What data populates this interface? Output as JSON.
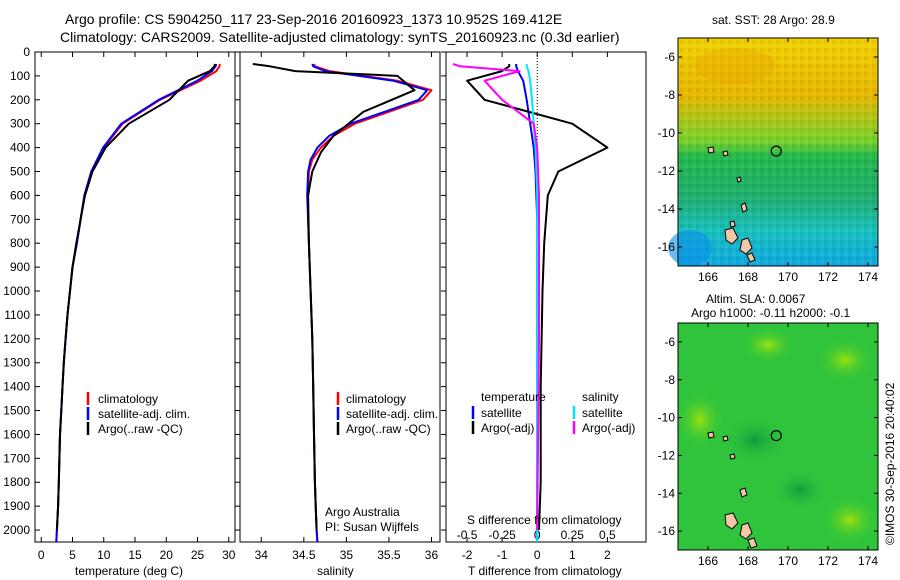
{
  "header": {
    "line1": "Argo profile: CS 5904250_117 23-Sep-2016 20160923_1373 10.952S 169.412E",
    "line2": "Climatology: CARS2009. Satellite-adjusted climatology: synTS_20160923.nc (0.3d earlier)"
  },
  "colors": {
    "climatology": "#ff0000",
    "satellite": "#0000ff",
    "argo": "#000000",
    "argo_salinity_adj": "#ff00ff",
    "satellite_salinity": "#00e5ff"
  },
  "chart_data": [
    {
      "type": "line",
      "name": "temperature-profile",
      "xlabel": "temperature (deg C)",
      "ylabel": "",
      "xlim": [
        -1,
        31
      ],
      "ylim": [
        2050,
        0
      ],
      "xticks": [
        "0",
        "5",
        "10",
        "15",
        "20",
        "25",
        "30"
      ],
      "yticks": [
        "0",
        "100",
        "200",
        "300",
        "400",
        "500",
        "600",
        "700",
        "800",
        "900",
        "1000",
        "1100",
        "1200",
        "1300",
        "1400",
        "1500",
        "1600",
        "1700",
        "1800",
        "1900",
        "2000"
      ],
      "legend": [
        "climatology",
        "satellite-adj. clim.",
        "Argo(..raw -QC)"
      ],
      "series": [
        {
          "name": "climatology",
          "color": "#ff0000",
          "x": [
            28.6,
            28.5,
            28.0,
            25.5,
            19.0,
            13.0,
            10.0,
            8.0,
            6.9,
            6.3,
            5.7,
            5.0,
            4.6,
            4.2,
            3.9,
            3.6,
            3.4,
            3.2,
            3.0,
            2.9,
            2.8,
            2.7,
            2.6,
            2.5,
            2.4
          ],
          "y": [
            50,
            60,
            80,
            120,
            200,
            300,
            400,
            500,
            600,
            700,
            800,
            900,
            1000,
            1100,
            1200,
            1300,
            1400,
            1500,
            1600,
            1700,
            1800,
            1900,
            1950,
            2000,
            2050
          ]
        },
        {
          "name": "satellite-adj. clim.",
          "color": "#0000ff",
          "x": [
            28.0,
            27.9,
            27.3,
            25.0,
            18.8,
            12.8,
            9.9,
            8.0,
            6.9,
            6.3,
            5.7,
            5.0,
            4.6,
            4.2,
            3.9,
            3.6,
            3.4,
            3.2,
            3.0,
            2.9,
            2.8,
            2.7,
            2.6,
            2.5,
            2.4
          ],
          "y": [
            50,
            60,
            80,
            120,
            200,
            300,
            400,
            500,
            600,
            700,
            800,
            900,
            1000,
            1100,
            1200,
            1300,
            1400,
            1500,
            1600,
            1700,
            1800,
            1900,
            1950,
            2000,
            2050
          ]
        },
        {
          "name": "Argo(..raw -QC)",
          "color": "#000000",
          "x": [
            27.8,
            27.7,
            27.0,
            23.5,
            20.5,
            14.0,
            10.3,
            8.2,
            7.0,
            6.3,
            5.6,
            5.0,
            4.6,
            4.2,
            3.9,
            3.6,
            3.4,
            3.2,
            3.0,
            2.9,
            2.8,
            2.7,
            2.6,
            2.5
          ],
          "y": [
            50,
            60,
            80,
            120,
            200,
            300,
            400,
            500,
            600,
            700,
            800,
            900,
            1000,
            1100,
            1200,
            1300,
            1400,
            1500,
            1600,
            1700,
            1800,
            1900,
            1950,
            2000
          ]
        }
      ]
    },
    {
      "type": "line",
      "name": "salinity-profile",
      "xlabel": "salinity",
      "ylabel": "",
      "xlim": [
        33.75,
        36.1
      ],
      "ylim": [
        2050,
        0
      ],
      "xticks": [
        "34",
        "34.5",
        "35",
        "35.5",
        "36"
      ],
      "legend": [
        "climatology",
        "satellite-adj. clim.",
        "Argo(..raw -QC)"
      ],
      "annotation": [
        "Argo Australia",
        "PI: Susan Wijffels"
      ],
      "series": [
        {
          "name": "climatology",
          "color": "#ff0000",
          "x": [
            34.62,
            34.63,
            34.8,
            35.6,
            36.0,
            35.9,
            35.5,
            35.1,
            34.85,
            34.7,
            34.6,
            34.56,
            34.55,
            34.55,
            34.56,
            34.58,
            34.6,
            34.61,
            34.62,
            34.63,
            34.64,
            34.65,
            34.66
          ],
          "y": [
            50,
            60,
            80,
            120,
            160,
            200,
            250,
            300,
            350,
            400,
            450,
            500,
            600,
            700,
            800,
            1000,
            1200,
            1400,
            1600,
            1800,
            1900,
            2000,
            2050
          ]
        },
        {
          "name": "satellite-adj. clim.",
          "color": "#0000ff",
          "x": [
            34.6,
            34.61,
            34.75,
            35.55,
            35.95,
            35.85,
            35.45,
            35.05,
            34.8,
            34.66,
            34.58,
            34.55,
            34.54,
            34.55,
            34.56,
            34.58,
            34.6,
            34.61,
            34.62,
            34.63,
            34.64,
            34.65,
            34.66
          ],
          "y": [
            50,
            60,
            80,
            120,
            160,
            200,
            250,
            300,
            350,
            400,
            450,
            500,
            600,
            700,
            800,
            1000,
            1200,
            1400,
            1600,
            1800,
            1900,
            2000,
            2050
          ]
        },
        {
          "name": "Argo(..raw -QC)",
          "color": "#000000",
          "x": [
            33.9,
            34.1,
            34.4,
            35.6,
            35.8,
            35.2,
            34.85,
            34.7,
            34.6,
            34.55,
            34.56,
            34.58,
            34.6,
            34.61,
            34.62,
            34.63,
            34.64,
            34.65
          ],
          "y": [
            50,
            60,
            80,
            100,
            160,
            250,
            350,
            420,
            500,
            600,
            800,
            1000,
            1200,
            1400,
            1600,
            1800,
            1900,
            2000
          ]
        }
      ]
    },
    {
      "type": "line",
      "name": "difference-profile",
      "xlabel": "T difference from climatology",
      "xlabel2": "S difference from climatology",
      "xlim": [
        -2.6,
        3.1
      ],
      "ylim": [
        2050,
        0
      ],
      "xticks": [
        "-2",
        "-1",
        "0",
        "1",
        "2"
      ],
      "xticks_s": [
        "-0.5",
        "-0.25",
        "0",
        "0.25",
        "0.5"
      ],
      "legend_headers": [
        "temperature",
        "salinity"
      ],
      "legend": [
        "satellite",
        "Argo(-adj)",
        "satellite",
        "Argo(-adj)"
      ],
      "series": [
        {
          "name": "satellite",
          "color": "#0000ff",
          "x": [
            -0.6,
            -0.6,
            -0.55,
            -0.4,
            -0.3,
            -0.2,
            -0.1,
            -0.05,
            0,
            0,
            0,
            0
          ],
          "y": [
            50,
            60,
            80,
            120,
            200,
            300,
            400,
            500,
            700,
            1000,
            1500,
            2050
          ]
        },
        {
          "name": "Argo(-adj)",
          "color": "#000000",
          "x": [
            -0.8,
            -0.8,
            -1.0,
            -2.0,
            -1.5,
            1.0,
            2.0,
            0.6,
            0.3,
            0.2,
            0.15,
            0.1,
            0.1,
            0.05
          ],
          "y": [
            50,
            60,
            80,
            120,
            200,
            300,
            400,
            500,
            600,
            800,
            1000,
            1400,
            1800,
            2000
          ]
        },
        {
          "name": "satellite",
          "color": "#00e5ff",
          "x": [
            -0.3,
            -0.3,
            -0.25,
            -0.2,
            -0.15,
            -0.1,
            -0.05,
            0,
            0,
            0
          ],
          "y": [
            50,
            60,
            80,
            120,
            200,
            300,
            400,
            600,
            1200,
            2050
          ]
        },
        {
          "name": "Argo(-adj)",
          "color": "#ff00ff",
          "x": [
            -2.4,
            -2.2,
            -0.5,
            -1.5,
            -1.0,
            -0.1,
            0,
            0.05,
            0.05,
            0
          ],
          "y": [
            50,
            60,
            80,
            120,
            200,
            300,
            400,
            600,
            1200,
            2000
          ]
        }
      ]
    },
    {
      "type": "heatmap",
      "name": "sst-map",
      "title": "sat. SST: 28 Argo: 28.9",
      "xlim": [
        164.5,
        174.5
      ],
      "ylim": [
        -17,
        -5
      ],
      "xticks": [
        "166",
        "168",
        "170",
        "172",
        "174"
      ],
      "yticks": [
        "-6",
        "-8",
        "-10",
        "-12",
        "-14",
        "-16"
      ],
      "argo_position": {
        "lon": 169.412,
        "lat": -10.952
      }
    },
    {
      "type": "heatmap",
      "name": "sla-map",
      "title": "Altim. SLA: 0.0067",
      "subtitle": "Argo h1000: -0.11 h2000: -0.1",
      "xlim": [
        164.5,
        174.5
      ],
      "ylim": [
        -17,
        -5
      ],
      "xticks": [
        "166",
        "168",
        "170",
        "172",
        "174"
      ],
      "yticks": [
        "-6",
        "-8",
        "-10",
        "-12",
        "-14",
        "-16"
      ],
      "argo_position": {
        "lon": 169.412,
        "lat": -10.952
      }
    }
  ],
  "footer": {
    "stamp": "©IMOS 30-Sep-2016 20:40:02"
  }
}
